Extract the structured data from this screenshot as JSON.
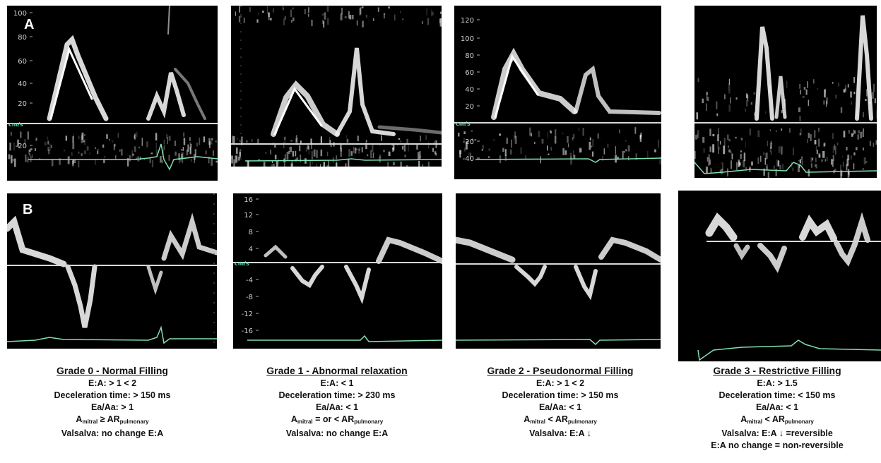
{
  "rows": {
    "a_label": "A",
    "b_label": "B"
  },
  "unit": "cm/s",
  "row_a_ticks": {
    "p0": [
      "100",
      "80",
      "60",
      "40",
      "20",
      "-20"
    ],
    "p2": [
      "120",
      "100",
      "80",
      "60",
      "40",
      "20",
      "-20",
      "-40"
    ]
  },
  "row_b_ticks": {
    "p1": [
      "16",
      "12",
      "8",
      "4",
      "-4",
      "-8",
      "-12",
      "-16"
    ]
  },
  "grades": [
    {
      "title": "Grade 0 - Normal Filling",
      "ea": "E:A: > 1 < 2",
      "decel": "Deceleration time: > 150 ms",
      "eaaa": "Ea/Aa: > 1",
      "amitral_a": "A",
      "amitral_sub": "mitral",
      "amitral_rel": " ≥ AR",
      "ar_sub": "pulmonary",
      "valsalva": "Valsalva: no change E:A",
      "extra": ""
    },
    {
      "title": "Grade 1 - Abnormal relaxation",
      "ea": "E:A: < 1",
      "decel": "Deceleration time: > 230 ms",
      "eaaa": "Ea/Aa: < 1",
      "amitral_a": "A",
      "amitral_sub": "mitral",
      "amitral_rel": " = or < AR",
      "ar_sub": "pulmonary",
      "valsalva": "Valsalva: no change E:A",
      "extra": ""
    },
    {
      "title": "Grade 2 - Pseudonormal Filling",
      "ea": "E:A: > 1 < 2",
      "decel": "Deceleration time: > 150 ms",
      "eaaa": "Ea/Aa: < 1",
      "amitral_a": "A",
      "amitral_sub": "mitral",
      "amitral_rel": " < AR",
      "ar_sub": "pulmonary",
      "valsalva": "Valsalva: E:A ↓",
      "extra": ""
    },
    {
      "title": "Grade 3 - Restrictive Filling",
      "ea": "E:A: > 1.5",
      "decel": "Deceleration time: < 150 ms",
      "eaaa": "Ea/Aa: < 1",
      "amitral_a": "A",
      "amitral_sub": "mitral",
      "amitral_rel": " < AR",
      "ar_sub": "pulmonary",
      "valsalva": "Valsalva: E:A ↓ =reversible",
      "extra": "E:A no change = non-reversible"
    }
  ],
  "colors": {
    "background": "#000000",
    "baseline": "#d8d8d8",
    "ecg": "#7fe0b0",
    "signal": "#f2f2f2"
  }
}
